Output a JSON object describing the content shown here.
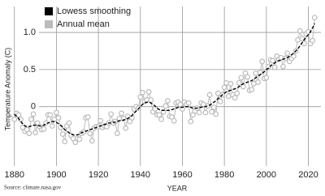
{
  "chart_data": {
    "type": "line",
    "ylabel": "Temperature Anomaly (C)",
    "xlabel": "YEAR",
    "source": "Source: climate.nasa.gov",
    "x": [
      1880,
      1881,
      1882,
      1883,
      1884,
      1885,
      1886,
      1887,
      1888,
      1889,
      1890,
      1891,
      1892,
      1893,
      1894,
      1895,
      1896,
      1897,
      1898,
      1899,
      1900,
      1901,
      1902,
      1903,
      1904,
      1905,
      1906,
      1907,
      1908,
      1909,
      1910,
      1911,
      1912,
      1913,
      1914,
      1915,
      1916,
      1917,
      1918,
      1919,
      1920,
      1921,
      1922,
      1923,
      1924,
      1925,
      1926,
      1927,
      1928,
      1929,
      1930,
      1931,
      1932,
      1933,
      1934,
      1935,
      1936,
      1937,
      1938,
      1939,
      1940,
      1941,
      1942,
      1943,
      1944,
      1945,
      1946,
      1947,
      1948,
      1949,
      1950,
      1951,
      1952,
      1953,
      1954,
      1955,
      1956,
      1957,
      1958,
      1959,
      1960,
      1961,
      1962,
      1963,
      1964,
      1965,
      1966,
      1967,
      1968,
      1969,
      1970,
      1971,
      1972,
      1973,
      1974,
      1975,
      1976,
      1977,
      1978,
      1979,
      1980,
      1981,
      1982,
      1983,
      1984,
      1985,
      1986,
      1987,
      1988,
      1989,
      1990,
      1991,
      1992,
      1993,
      1994,
      1995,
      1996,
      1997,
      1998,
      1999,
      2000,
      2001,
      2002,
      2003,
      2004,
      2005,
      2006,
      2007,
      2008,
      2009,
      2010,
      2011,
      2012,
      2013,
      2014,
      2015,
      2016,
      2017,
      2018,
      2019,
      2020,
      2021,
      2022,
      2023
    ],
    "series": [
      {
        "name": "Lowess smoothing",
        "color": "#000000",
        "linestyle": "dashed",
        "values": [
          -0.1,
          -0.13,
          -0.16,
          -0.2,
          -0.23,
          -0.26,
          -0.27,
          -0.27,
          -0.26,
          -0.25,
          -0.25,
          -0.25,
          -0.26,
          -0.26,
          -0.25,
          -0.23,
          -0.22,
          -0.21,
          -0.2,
          -0.2,
          -0.21,
          -0.23,
          -0.25,
          -0.28,
          -0.31,
          -0.33,
          -0.35,
          -0.37,
          -0.38,
          -0.38,
          -0.38,
          -0.37,
          -0.35,
          -0.34,
          -0.33,
          -0.32,
          -0.31,
          -0.3,
          -0.29,
          -0.28,
          -0.27,
          -0.26,
          -0.25,
          -0.24,
          -0.23,
          -0.22,
          -0.22,
          -0.21,
          -0.21,
          -0.2,
          -0.19,
          -0.19,
          -0.18,
          -0.17,
          -0.16,
          -0.14,
          -0.12,
          -0.09,
          -0.06,
          -0.03,
          0.0,
          0.03,
          0.05,
          0.06,
          0.06,
          0.05,
          0.03,
          0.01,
          -0.02,
          -0.04,
          -0.05,
          -0.05,
          -0.05,
          -0.05,
          -0.05,
          -0.04,
          -0.03,
          -0.02,
          -0.01,
          -0.01,
          -0.01,
          0.0,
          0.0,
          0.0,
          -0.01,
          -0.02,
          -0.02,
          -0.02,
          -0.01,
          -0.01,
          0.0,
          0.0,
          0.01,
          0.02,
          0.04,
          0.06,
          0.08,
          0.11,
          0.13,
          0.16,
          0.18,
          0.2,
          0.21,
          0.22,
          0.23,
          0.24,
          0.25,
          0.27,
          0.29,
          0.31,
          0.32,
          0.33,
          0.34,
          0.35,
          0.37,
          0.39,
          0.41,
          0.43,
          0.45,
          0.47,
          0.5,
          0.52,
          0.55,
          0.57,
          0.59,
          0.61,
          0.62,
          0.63,
          0.64,
          0.65,
          0.66,
          0.68,
          0.7,
          0.72,
          0.75,
          0.78,
          0.82,
          0.86,
          0.9,
          0.94,
          0.97,
          1.01,
          1.06,
          1.12
        ]
      },
      {
        "name": "Annual mean",
        "color": "#bbbbbb",
        "marker": "circle",
        "values": [
          -0.17,
          -0.09,
          -0.11,
          -0.17,
          -0.28,
          -0.33,
          -0.31,
          -0.36,
          -0.17,
          -0.1,
          -0.35,
          -0.22,
          -0.27,
          -0.31,
          -0.3,
          -0.22,
          -0.11,
          -0.11,
          -0.26,
          -0.17,
          -0.08,
          -0.15,
          -0.28,
          -0.37,
          -0.47,
          -0.26,
          -0.22,
          -0.39,
          -0.43,
          -0.48,
          -0.43,
          -0.44,
          -0.36,
          -0.34,
          -0.15,
          -0.14,
          -0.36,
          -0.46,
          -0.29,
          -0.27,
          -0.27,
          -0.19,
          -0.28,
          -0.26,
          -0.27,
          -0.22,
          -0.1,
          -0.22,
          -0.2,
          -0.36,
          -0.16,
          -0.09,
          -0.16,
          -0.29,
          -0.13,
          -0.2,
          -0.15,
          -0.03,
          0.0,
          -0.02,
          0.13,
          0.19,
          0.07,
          0.09,
          0.2,
          0.09,
          -0.07,
          -0.03,
          -0.11,
          -0.11,
          -0.17,
          -0.07,
          0.01,
          0.08,
          -0.13,
          -0.14,
          -0.19,
          0.05,
          0.06,
          0.03,
          -0.03,
          0.06,
          0.03,
          0.05,
          -0.2,
          -0.11,
          -0.06,
          -0.02,
          -0.08,
          0.05,
          0.03,
          -0.08,
          0.01,
          0.16,
          -0.07,
          -0.01,
          -0.1,
          0.18,
          0.07,
          0.16,
          0.26,
          0.32,
          0.14,
          0.31,
          0.16,
          0.12,
          0.18,
          0.32,
          0.39,
          0.27,
          0.45,
          0.4,
          0.22,
          0.23,
          0.31,
          0.45,
          0.33,
          0.46,
          0.61,
          0.38,
          0.39,
          0.54,
          0.63,
          0.62,
          0.53,
          0.68,
          0.64,
          0.66,
          0.54,
          0.65,
          0.72,
          0.61,
          0.65,
          0.68,
          0.75,
          0.9,
          1.02,
          0.92,
          0.85,
          0.98,
          1.01,
          0.85,
          0.89,
          1.2
        ]
      }
    ],
    "xlim": [
      1877,
      2026
    ],
    "xticks": [
      1880,
      1900,
      1920,
      1940,
      1960,
      1980,
      2000,
      2020
    ],
    "ylim": [
      -0.8,
      1.35
    ],
    "yticks": [
      0,
      0.5,
      {
        "value": 1,
        "label": "1.0"
      }
    ],
    "grid": true,
    "legend": "upper left"
  }
}
